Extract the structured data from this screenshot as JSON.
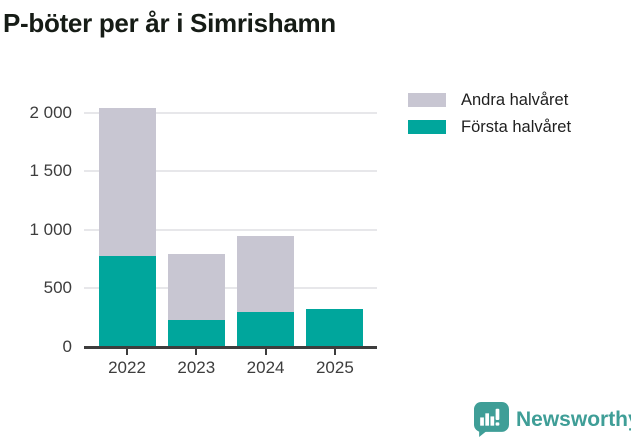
{
  "title": "P-böter per år i Simrishamn",
  "legend": [
    {
      "label": "Andra halvåret",
      "color": "#c8c6d2"
    },
    {
      "label": "Första halvåret",
      "color": "#00a69c"
    }
  ],
  "chart_data": {
    "type": "bar",
    "stacked": true,
    "title": "P-böter per år i Simrishamn",
    "categories": [
      "2022",
      "2023",
      "2024",
      "2025"
    ],
    "series": [
      {
        "name": "Första halvåret",
        "color": "#00a69c",
        "values": [
          780,
          230,
          300,
          325
        ]
      },
      {
        "name": "Andra halvåret",
        "color": "#c8c6d2",
        "values": [
          1260,
          565,
          650,
          0
        ]
      }
    ],
    "totals": [
      2040,
      795,
      950,
      325
    ],
    "xlabel": "",
    "ylabel": "",
    "ylim": [
      0,
      2050
    ],
    "yticks": [
      {
        "value": 0,
        "label": "0"
      },
      {
        "value": 500,
        "label": "500"
      },
      {
        "value": 1000,
        "label": "1 000"
      },
      {
        "value": 1500,
        "label": "1 500"
      },
      {
        "value": 2000,
        "label": "2 000"
      }
    ],
    "grid": true,
    "legend_position": "top-right"
  },
  "colors": {
    "grid": "#e7e7ea",
    "axis": "#3d3d3d",
    "tick_label": "#3d3d3d",
    "brand": "#3f9e97"
  },
  "branding": {
    "name": "Newsworthy"
  }
}
